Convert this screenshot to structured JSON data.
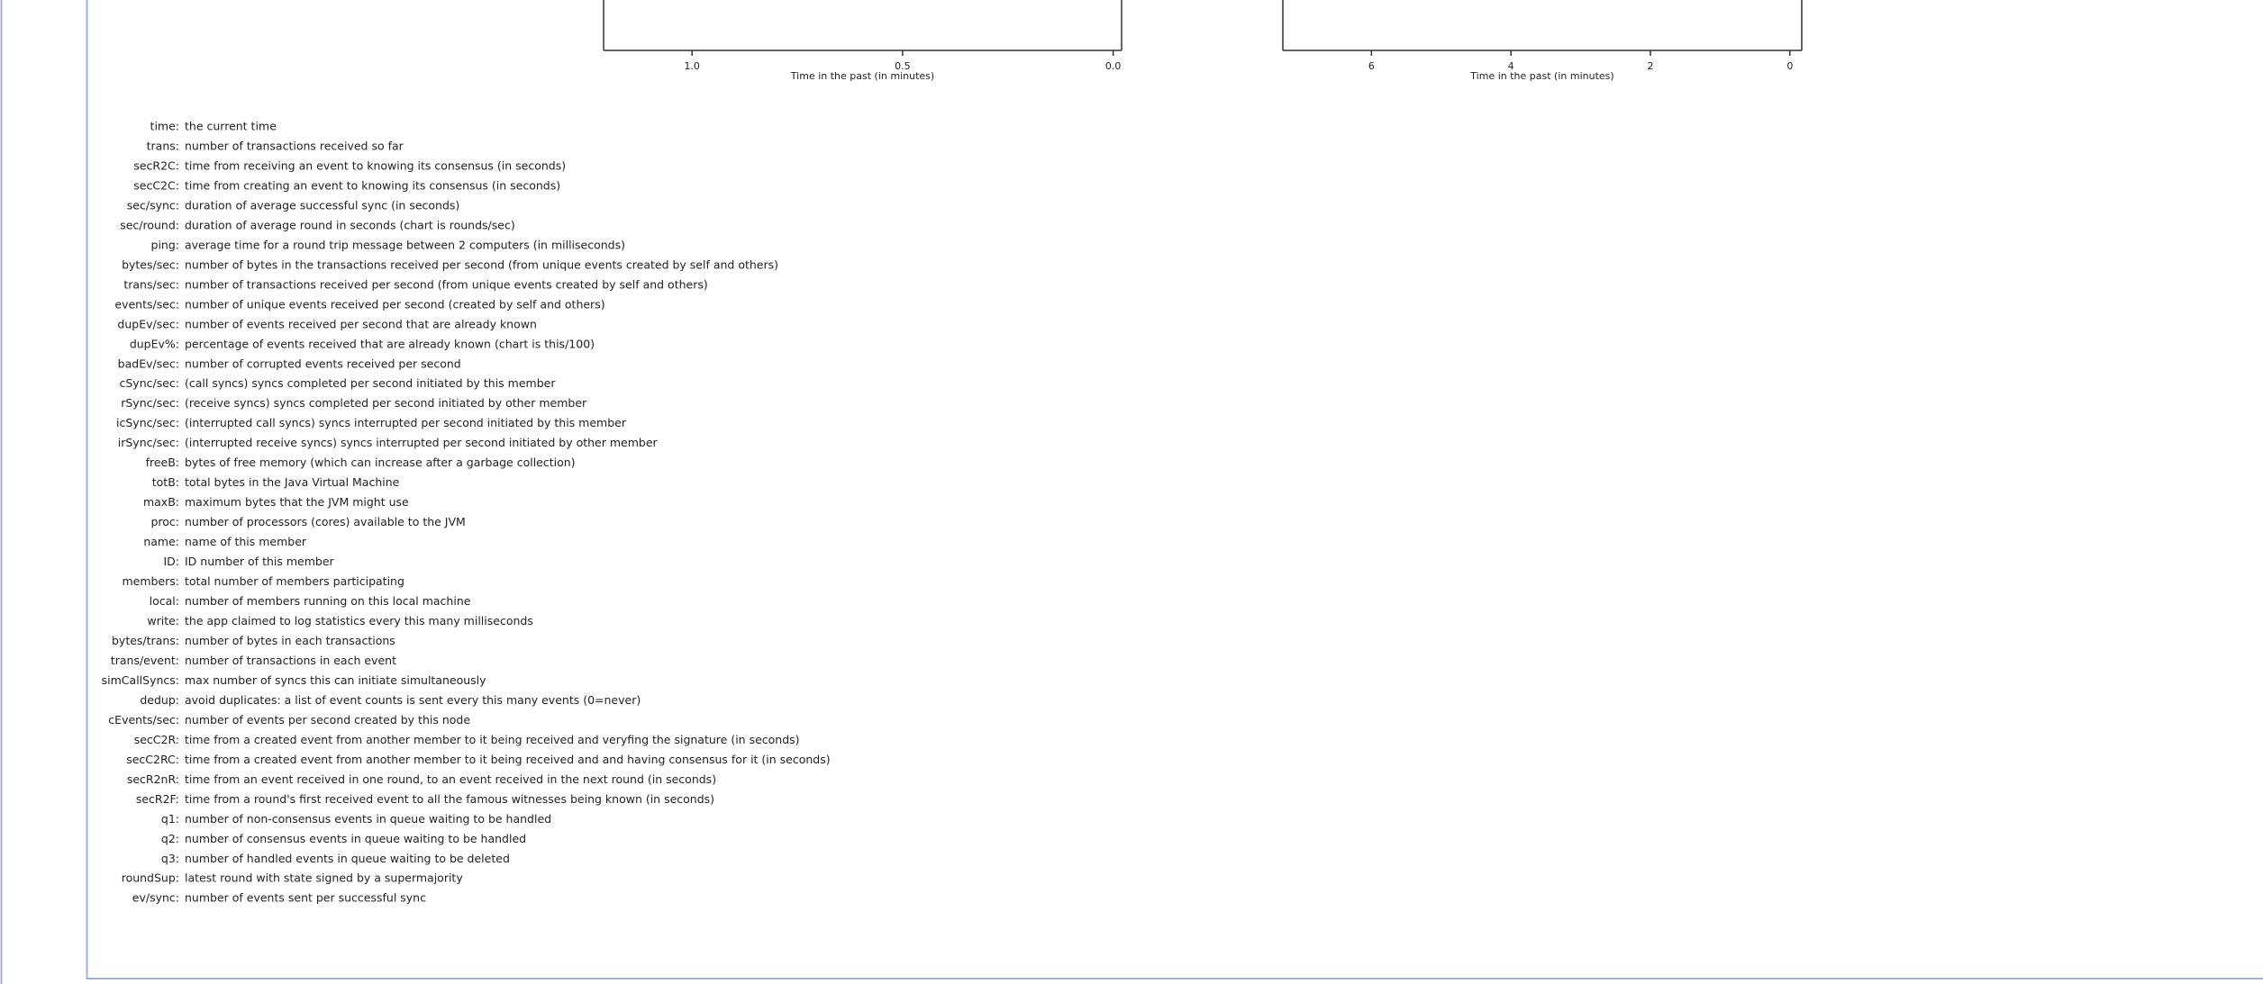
{
  "plots": [
    {
      "xlabel": "Time in the past (in minutes)",
      "xlim": [
        1.21,
        -0.02
      ],
      "xticks": [
        {
          "value": 1,
          "label": "1.0"
        },
        {
          "value": 0.5,
          "label": "0.5"
        },
        {
          "value": 0,
          "label": "0.0"
        }
      ]
    },
    {
      "xlabel": "Time in the past (in minutes)",
      "xlim": [
        7.27,
        -0.17
      ],
      "xticks": [
        6,
        4,
        2,
        0
      ]
    }
  ],
  "definitions": [
    {
      "key": "time:",
      "desc": "the current time"
    },
    {
      "key": "trans:",
      "desc": "number of transactions received so far"
    },
    {
      "key": "secR2C:",
      "desc": "time from receiving an event to knowing its consensus (in seconds)"
    },
    {
      "key": "secC2C:",
      "desc": "time from creating an event to knowing its consensus (in seconds)"
    },
    {
      "key": "sec/sync:",
      "desc": "duration of average successful sync (in seconds)"
    },
    {
      "key": "sec/round:",
      "desc": "duration of average round in seconds (chart is rounds/sec)"
    },
    {
      "key": "ping:",
      "desc": "average time for a round trip message between 2 computers (in milliseconds)"
    },
    {
      "key": "bytes/sec:",
      "desc": "number of bytes in the transactions received per second (from unique events created by self and others)"
    },
    {
      "key": "trans/sec:",
      "desc": "number of transactions received per second (from unique events created by self and others)"
    },
    {
      "key": "events/sec:",
      "desc": "number of unique events received per second (created by self and others)"
    },
    {
      "key": "dupEv/sec:",
      "desc": "number of events received per second that are already known"
    },
    {
      "key": "dupEv%:",
      "desc": "percentage of events received that are already known (chart is this/100)"
    },
    {
      "key": "badEv/sec:",
      "desc": "number of corrupted events received per second"
    },
    {
      "key": "cSync/sec:",
      "desc": "(call syncs) syncs completed per second initiated by this member"
    },
    {
      "key": "rSync/sec:",
      "desc": "(receive syncs) syncs completed per second initiated by other member"
    },
    {
      "key": "icSync/sec:",
      "desc": "(interrupted call syncs) syncs interrupted per second initiated by this member"
    },
    {
      "key": "irSync/sec:",
      "desc": "(interrupted receive syncs) syncs interrupted per second initiated by other member"
    },
    {
      "key": "freeB:",
      "desc": "bytes of free memory (which can increase after a garbage collection)"
    },
    {
      "key": "totB:",
      "desc": "total bytes in the Java Virtual Machine"
    },
    {
      "key": "maxB:",
      "desc": "maximum bytes that the JVM might use"
    },
    {
      "key": "proc:",
      "desc": "number of processors (cores) available to the JVM"
    },
    {
      "key": "name:",
      "desc": "name of this member"
    },
    {
      "key": "ID:",
      "desc": "ID number of this member"
    },
    {
      "key": "members:",
      "desc": "total number of members participating"
    },
    {
      "key": "local:",
      "desc": "number of members running on this local machine"
    },
    {
      "key": "write:",
      "desc": "the app claimed to log statistics every this many milliseconds"
    },
    {
      "key": "bytes/trans:",
      "desc": "number of bytes in each transactions"
    },
    {
      "key": "trans/event:",
      "desc": "number of transactions in each event"
    },
    {
      "key": "simCallSyncs:",
      "desc": "max number of syncs this can initiate simultaneously"
    },
    {
      "key": "dedup:",
      "desc": "avoid duplicates: a list of event counts is sent every this many events (0=never)"
    },
    {
      "key": "cEvents/sec:",
      "desc": "number of events per second created by this node"
    },
    {
      "key": "secC2R:",
      "desc": "time from a created event from another member to it being received and veryfing the signature (in seconds)"
    },
    {
      "key": "secC2RC:",
      "desc": "time from a created event from another member to it being received and and having consensus for it (in seconds)"
    },
    {
      "key": "secR2nR:",
      "desc": "time from an event received in one round, to an event received in the next round (in seconds)"
    },
    {
      "key": "secR2F:",
      "desc": "time from a round's first received event to all the famous witnesses being known (in seconds)"
    },
    {
      "key": "q1:",
      "desc": "number of non-consensus events in queue waiting to be handled"
    },
    {
      "key": "q2:",
      "desc": "number of consensus events in queue waiting to be handled"
    },
    {
      "key": "q3:",
      "desc": "number of handled events in queue waiting to be deleted"
    },
    {
      "key": "roundSup:",
      "desc": "latest round with state signed by a supermajority"
    },
    {
      "key": "ev/sync:",
      "desc": "number of events sent per successful sync"
    }
  ]
}
